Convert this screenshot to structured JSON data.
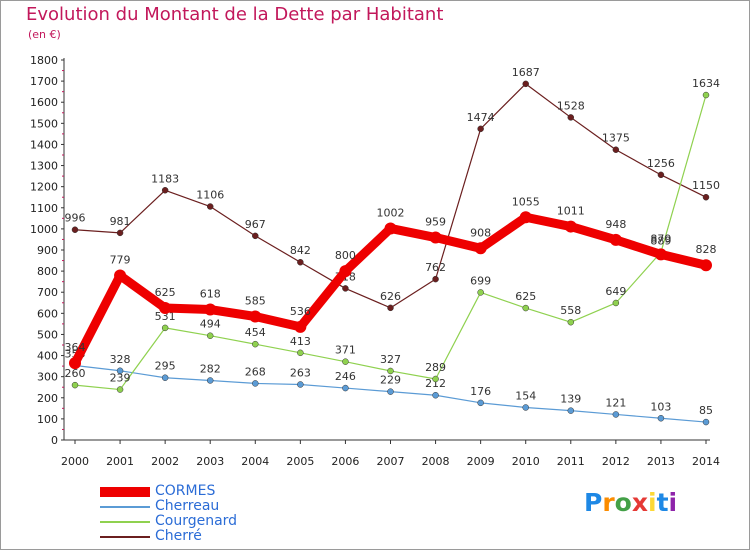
{
  "title": "Evolution du Montant de la Dette par Habitant",
  "subtitle": "(en €)",
  "logo_text": "Proxiti",
  "chart_data": {
    "type": "line",
    "title": "Evolution du Montant de la Dette par Habitant",
    "ylabel": "(en €)",
    "xlabel": "",
    "x": [
      "2000",
      "2001",
      "2002",
      "2003",
      "2004",
      "2005",
      "2006",
      "2007",
      "2008",
      "2009",
      "2010",
      "2011",
      "2012",
      "2013",
      "2014"
    ],
    "ylim": [
      0,
      1800
    ],
    "yticks": [
      0,
      100,
      200,
      300,
      400,
      500,
      600,
      700,
      800,
      900,
      1000,
      1100,
      1200,
      1300,
      1400,
      1500,
      1600,
      1700,
      1800
    ],
    "grid": false,
    "legend_position": "bottom-left",
    "series": [
      {
        "name": "CORMES",
        "color": "#ee0000",
        "values": [
          364,
          779,
          625,
          618,
          585,
          536,
          800,
          1002,
          959,
          908,
          1055,
          1011,
          948,
          879,
          828
        ]
      },
      {
        "name": "Cherreau",
        "color": "#5b9bd5",
        "values": [
          353,
          328,
          295,
          282,
          268,
          263,
          246,
          229,
          212,
          176,
          154,
          139,
          121,
          103,
          85
        ]
      },
      {
        "name": "Courgenard",
        "color": "#8fd14f",
        "values": [
          260,
          239,
          531,
          494,
          454,
          413,
          371,
          327,
          289,
          699,
          625,
          558,
          649,
          889,
          1634
        ]
      },
      {
        "name": "Cherré",
        "color": "#6b1f1f",
        "values": [
          996,
          981,
          1183,
          1106,
          967,
          842,
          718,
          626,
          762,
          1474,
          1687,
          1528,
          1375,
          1256,
          1150
        ]
      }
    ]
  }
}
